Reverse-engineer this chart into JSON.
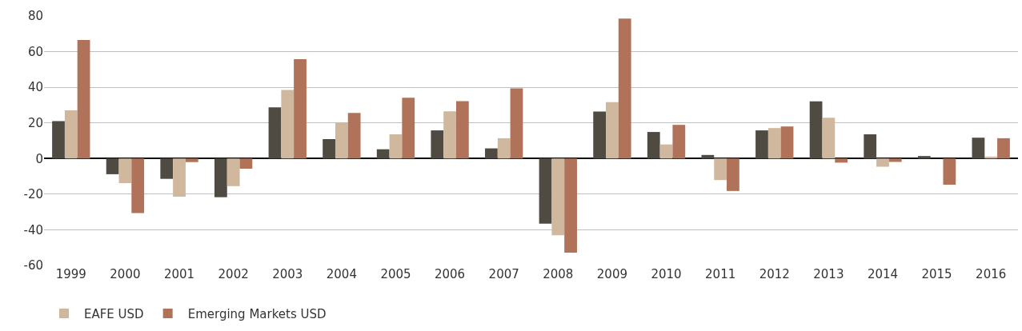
{
  "chart_data": {
    "type": "bar",
    "categories": [
      "1999",
      "2000",
      "2001",
      "2002",
      "2003",
      "2004",
      "2005",
      "2006",
      "2007",
      "2008",
      "2009",
      "2010",
      "2011",
      "2012",
      "2013",
      "2014",
      "2015",
      "2016"
    ],
    "series": [
      {
        "color": "#4f4a42",
        "values": [
          21,
          -8.8,
          -11.4,
          -21.7,
          28.7,
          10.9,
          5.2,
          15.8,
          5.7,
          -36.5,
          26.4,
          14.9,
          2,
          15.8,
          32.1,
          13.6,
          1.4,
          11.7
        ]
      },
      {
        "name": "EAFE USD",
        "color": "#cfb89e",
        "values": [
          27,
          -13.8,
          -21.4,
          -15.5,
          38.5,
          20.3,
          13.6,
          26.5,
          11.4,
          -43.1,
          31.7,
          7.9,
          -12.1,
          17.1,
          22.9,
          -4.6,
          0,
          1.1
        ]
      },
      {
        "name": "Emerging Markets USD",
        "color": "#b07259",
        "values": [
          66.5,
          -30.6,
          -2,
          -5.7,
          55.8,
          25.6,
          34.1,
          32.2,
          39.4,
          -52.8,
          78.5,
          18.9,
          -18.2,
          18,
          -2.3,
          -1.9,
          -14.7,
          11.4
        ]
      }
    ],
    "ylim": [
      -60,
      80
    ],
    "yticks": [
      -60,
      -40,
      -20,
      0,
      20,
      40,
      60,
      80
    ],
    "grid": "y",
    "legend": "bottom left"
  }
}
